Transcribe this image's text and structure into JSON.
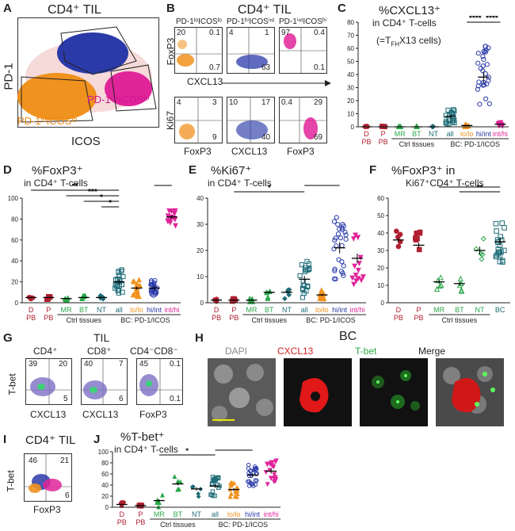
{
  "panels": {
    "A": {
      "letter": "A",
      "title": "CD4⁺ TIL",
      "yaxis": "PD-1",
      "xaxis": "ICOS",
      "gates": {
        "blue": "PD-1ʰⁱICOSⁱⁿᵗ",
        "magenta": "PD-1ⁱⁿᵗICOSʰⁱ",
        "orange": "PD-1ˡᵒICOSˡᵒ"
      }
    },
    "B": {
      "letter": "B",
      "title": "CD4⁺ TIL",
      "cols": [
        "PD-1ˡᵒICOSˡᵒ",
        "PD-1ʰⁱICOSⁱⁿᵗ",
        "PD-1ⁱⁿᵗICOSʰⁱ"
      ],
      "row1_ylabel": "FoxP3",
      "row1_xlabel": "CXCL13",
      "row1": [
        [
          "20",
          "0.1",
          "",
          "0.7"
        ],
        [
          "4",
          "1",
          "",
          "63"
        ],
        [
          "97",
          "0.4",
          "",
          "0.1"
        ]
      ],
      "row2_ylabel": "Ki67",
      "row2": [
        [
          "4",
          "3",
          "",
          "9"
        ],
        [
          "10",
          "17",
          "",
          "40"
        ],
        [
          "0.4",
          "29",
          "",
          "69"
        ]
      ],
      "row2_xlabels": [
        "FoxP3",
        "CXCL13",
        "FoxP3"
      ]
    },
    "C": {
      "letter": "C",
      "title": "%CXCL13⁺",
      "sub": "in CD4⁺ T-cells",
      "note": "(=T",
      "note_sub": "FH",
      "note_end": "X13 cells)"
    },
    "D": {
      "letter": "D",
      "title": "%FoxP3⁺",
      "sub": "in CD4⁺ T-cells"
    },
    "E": {
      "letter": "E",
      "title": "%Ki67⁺",
      "sub": "in CD4⁺ T-cells"
    },
    "F": {
      "letter": "F",
      "title": "%FoxP3⁺ in",
      "sub": "Ki67⁺CD4⁺ T-cells"
    },
    "G": {
      "letter": "G",
      "title": "TIL",
      "cols": [
        "CD4⁺",
        "CD8⁺",
        "CD4⁻CD8⁻"
      ],
      "ylabel": "T-bet",
      "xlabels": [
        "CXCL13",
        "CXCL13",
        "FoxP3"
      ],
      "nums": [
        [
          "39",
          "20",
          "",
          "5"
        ],
        [
          "40",
          "7",
          "",
          "6"
        ],
        [
          "45",
          "0.1",
          "",
          "0.1"
        ]
      ]
    },
    "H": {
      "letter": "H",
      "title": "BC",
      "cols": [
        "DAPI",
        "CXCL13",
        "T-bet",
        "Merge"
      ]
    },
    "I": {
      "letter": "I",
      "title": "CD4⁺ TIL",
      "ylabel": "T-bet",
      "xlabel": "FoxP3",
      "nums": [
        "46",
        "21",
        "",
        "6"
      ]
    },
    "J": {
      "letter": "J",
      "title": "%T-bet⁺",
      "sub": "in CD4⁺ T-cells"
    }
  },
  "groups": {
    "D": "D",
    "P": "P",
    "PB": "PB",
    "MR": "MR",
    "BT": "BT",
    "NT": "NT",
    "all": "all",
    "lolo": "lo/lo",
    "hiint": "hi/int",
    "inthi": "int/hi",
    "ctrl": "Ctrl tissues",
    "bc": "BC: PD-1/ICOS"
  },
  "colors": {
    "red": "#b02030",
    "green": "#2aa84a",
    "teal": "#1f6c78",
    "orange": "#f0921e",
    "blue": "#2a3aa8",
    "magenta": "#e0249a"
  },
  "chart_data": [
    {
      "type": "scatter",
      "panel": "C",
      "categories": [
        "D PB",
        "P PB",
        "MR",
        "BT",
        "NT",
        "all",
        "lo/lo",
        "hi/int",
        "int/hi"
      ],
      "yticks": [
        0,
        10,
        20,
        30,
        40,
        50,
        60,
        70,
        80
      ],
      "ylim": [
        0,
        80
      ],
      "means": [
        0,
        0,
        0,
        0,
        0,
        8,
        1,
        38,
        2
      ],
      "significance": [
        "****",
        "****"
      ]
    },
    {
      "type": "scatter",
      "panel": "D",
      "categories": [
        "D PB",
        "P PB",
        "MR",
        "BT",
        "NT",
        "all",
        "lo/lo",
        "hi/int",
        "int/hi"
      ],
      "yticks": [
        0,
        20,
        40,
        60,
        80,
        100
      ],
      "ylim": [
        0,
        100
      ],
      "means": [
        5,
        5,
        4,
        5,
        5,
        20,
        14,
        14,
        82
      ],
      "significance": [
        "**",
        "***",
        "*",
        "*",
        "****"
      ]
    },
    {
      "type": "scatter",
      "panel": "E",
      "categories": [
        "D PB",
        "P PB",
        "MR",
        "BT",
        "NT",
        "all",
        "lo/lo",
        "hi/int",
        "int/hi"
      ],
      "yticks": [
        0,
        10,
        20,
        30,
        40
      ],
      "ylim": [
        0,
        40
      ],
      "means": [
        1,
        1,
        1,
        4,
        4,
        9,
        3,
        21,
        17
      ],
      "significance": [
        "*",
        "****"
      ]
    },
    {
      "type": "scatter",
      "panel": "F",
      "categories": [
        "D PB",
        "P PB",
        "MR",
        "BT",
        "NT",
        "BC"
      ],
      "yticks": [
        0,
        10,
        20,
        30,
        40,
        50,
        60
      ],
      "ylim": [
        0,
        60
      ],
      "means": [
        36,
        33,
        12,
        11,
        30,
        35
      ],
      "significance": [
        "*",
        "**"
      ]
    },
    {
      "type": "scatter",
      "panel": "J",
      "categories": [
        "D PB",
        "P PB",
        "MR",
        "BT",
        "NT",
        "all",
        "lo/lo",
        "hi/int",
        "int/hi"
      ],
      "yticks": [
        0,
        20,
        40,
        60,
        80,
        100
      ],
      "ylim": [
        0,
        100
      ],
      "means": [
        5,
        3,
        12,
        42,
        33,
        38,
        32,
        58,
        65
      ],
      "significance": [
        "*",
        "****"
      ]
    }
  ]
}
